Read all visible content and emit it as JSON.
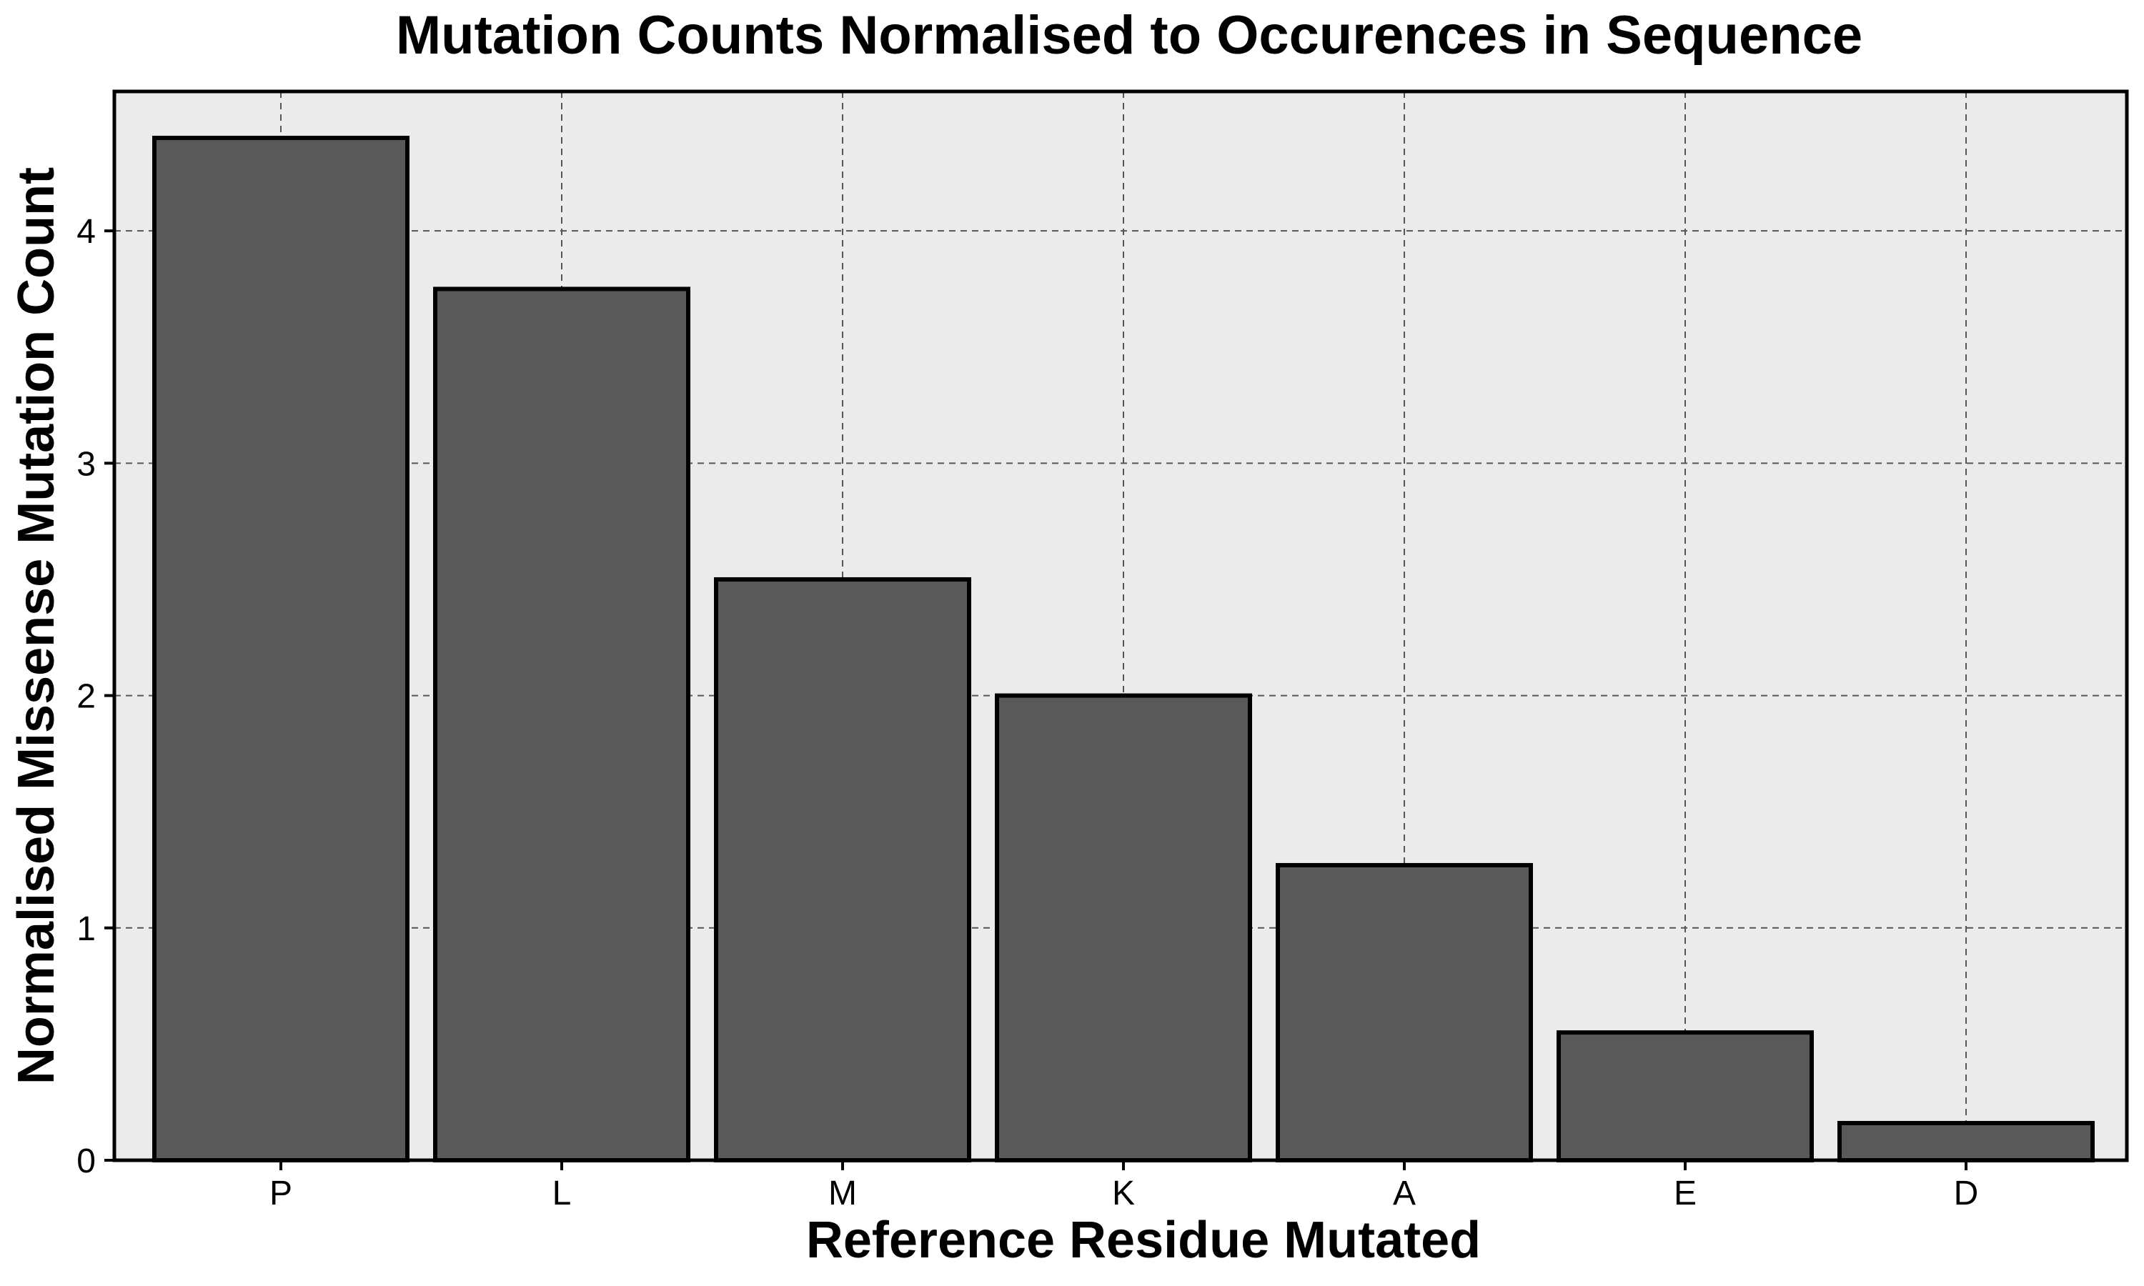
{
  "chart_data": {
    "type": "bar",
    "title": "Mutation Counts Normalised to Occurences in Sequence",
    "xlabel": "Reference Residue Mutated",
    "ylabel": "Normalised Missense Mutation Count",
    "categories": [
      "P",
      "L",
      "M",
      "K",
      "A",
      "E",
      "D"
    ],
    "values": [
      4.4,
      3.75,
      2.5,
      2.0,
      1.27,
      0.55,
      0.16
    ],
    "ylim": [
      0,
      4.6
    ],
    "yticks": [
      0,
      1,
      2,
      3,
      4
    ],
    "grid": true,
    "legend": "none",
    "colors": {
      "bar_fill": "#595959",
      "bar_edge": "#000000",
      "plot_background": "#ebebeb",
      "grid": "#555555"
    }
  }
}
